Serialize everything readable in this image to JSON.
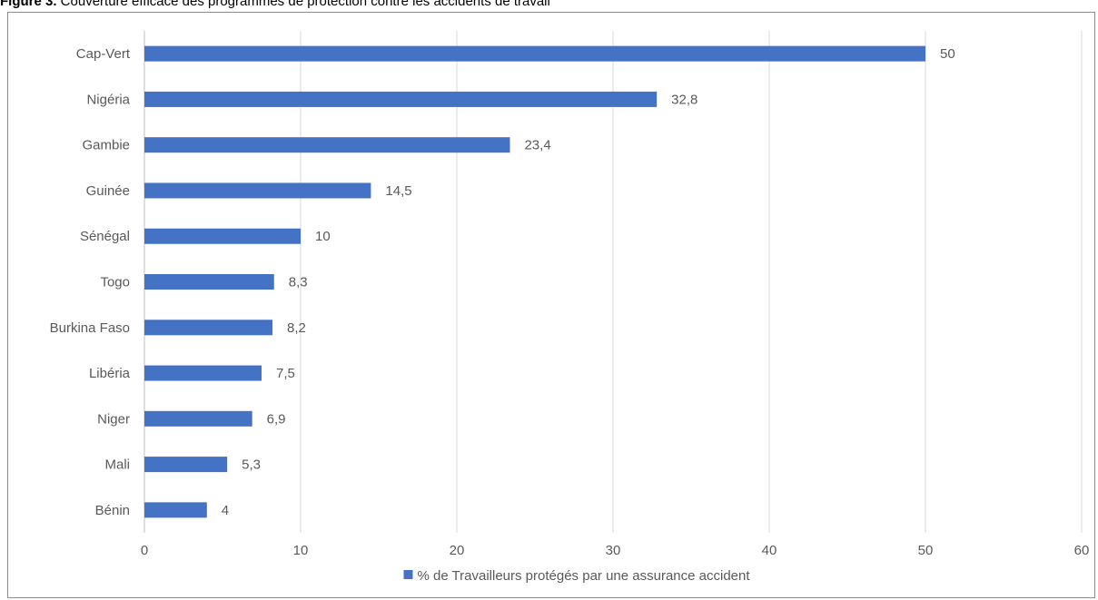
{
  "figure": {
    "label": "Figure 3.",
    "caption": " Couverture efficace des programmes de protection contre les accidents de travail"
  },
  "chart_data": {
    "type": "bar",
    "orientation": "horizontal",
    "title": "",
    "xlabel": "",
    "ylabel": "",
    "categories": [
      "Cap-Vert",
      "Nigéria",
      "Gambie",
      "Guinée",
      "Sénégal",
      "Togo",
      "Burkina Faso",
      "Libéria",
      "Niger",
      "Mali",
      "Bénin"
    ],
    "series": [
      {
        "name": "% de Travailleurs protégés par une assurance accident",
        "values": [
          50,
          32.8,
          23.4,
          14.5,
          10,
          8.3,
          8.2,
          7.5,
          6.9,
          5.3,
          4
        ],
        "data_labels": [
          "50",
          "32,8",
          "23,4",
          "14,5",
          "10",
          "8,3",
          "8,2",
          "7,5",
          "6,9",
          "5,3",
          "4"
        ],
        "color": "#4472c4"
      }
    ],
    "xlim": [
      0,
      60
    ],
    "x_ticks": [
      0,
      10,
      20,
      30,
      40,
      50,
      60
    ],
    "x_tick_labels": [
      "0",
      "10",
      "20",
      "30",
      "40",
      "50",
      "60"
    ],
    "grid": true,
    "grid_color": "#d9d9d9",
    "legend_position": "bottom"
  }
}
